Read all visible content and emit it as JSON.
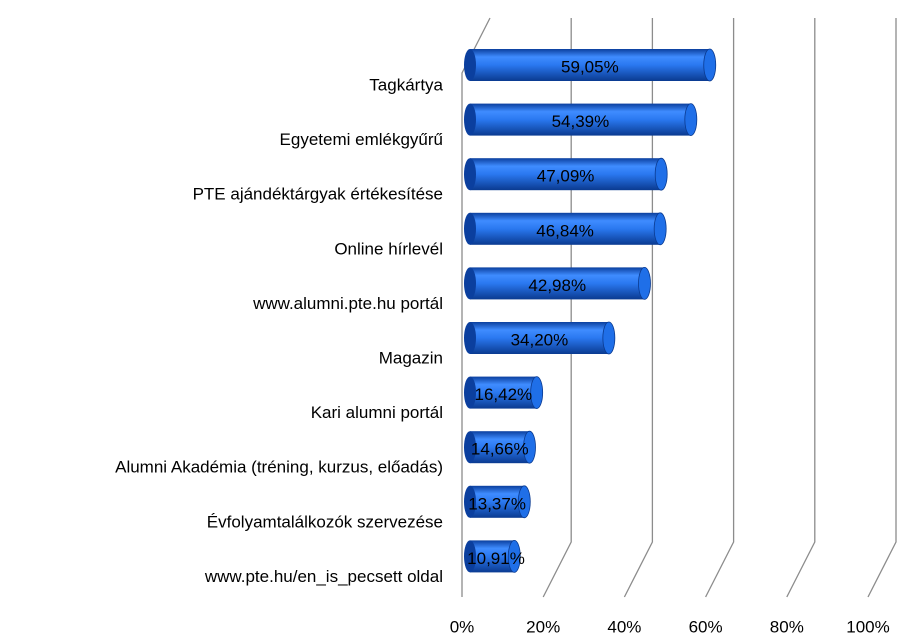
{
  "chart_data": {
    "type": "bar",
    "orientation": "horizontal",
    "categories": [
      "Tagkártya",
      "Egyetemi emlékgyűrű",
      "PTE ajándéktárgyak értékesítése",
      "Online hírlevél",
      "www.alumni.pte.hu portál",
      "Magazin",
      "Kari alumni portál",
      "Alumni Akadémia (tréning, kurzus, előadás)",
      "Évfolyamtalálkozók szervezése",
      "www.pte.hu/en_is_pecsett oldal"
    ],
    "values": [
      59.05,
      54.39,
      47.09,
      46.84,
      42.98,
      34.2,
      16.42,
      14.66,
      13.37,
      10.91
    ],
    "value_labels": [
      "59,05%",
      "54,39%",
      "47,09%",
      "46,84%",
      "42,98%",
      "34,20%",
      "16,42%",
      "14,66%",
      "13,37%",
      "10,91%"
    ],
    "color": "#1f6fe8",
    "xlim": [
      0,
      100
    ],
    "xticks": [
      {
        "value": 0,
        "label": "0%"
      },
      {
        "value": 20,
        "label": "20%"
      },
      {
        "value": 40,
        "label": "40%"
      },
      {
        "value": 60,
        "label": "60%"
      },
      {
        "value": 80,
        "label": "80%"
      },
      {
        "value": 100,
        "label": "100%"
      }
    ],
    "grid": true
  }
}
